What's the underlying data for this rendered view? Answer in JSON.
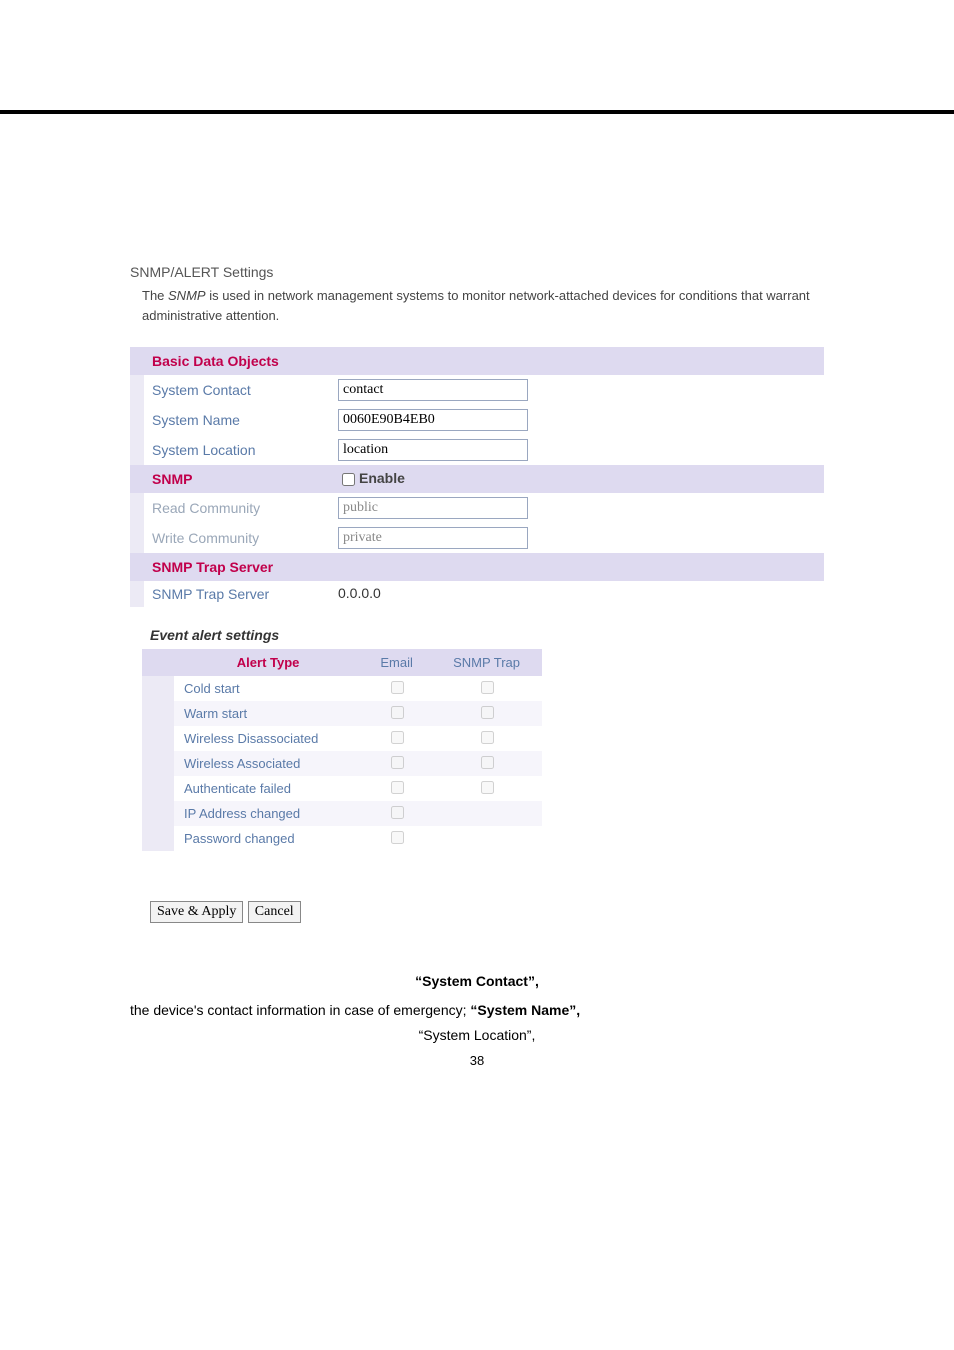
{
  "screenshot": {
    "title": "SNMP/ALERT Settings",
    "intro_pre": "The ",
    "intro_em": "SNMP",
    "intro_post": " is used in network management systems to monitor network-attached devices for conditions that warrant administrative attention.",
    "sections": {
      "basic_title": "Basic Data Objects",
      "system_contact": {
        "label": "System Contact",
        "value": "contact"
      },
      "system_name": {
        "label": "System Name",
        "value": "0060E90B4EB0"
      },
      "system_location": {
        "label": "System Location",
        "value": "location"
      },
      "snmp_title": "SNMP",
      "enable_label": "Enable",
      "read_community": {
        "label": "Read Community",
        "value": "public"
      },
      "write_community": {
        "label": "Write Community",
        "value": "private"
      },
      "trap_title": "SNMP Trap Server",
      "trap_server": {
        "label": "SNMP Trap Server",
        "value": "0.0.0.0"
      }
    },
    "events_heading": "Event alert settings",
    "events_table": {
      "header_alert_type": "Alert Type",
      "header_email": "Email",
      "header_snmp": "SNMP Trap",
      "rows": [
        {
          "label": "Cold start",
          "email": true,
          "snmp": true
        },
        {
          "label": "Warm start",
          "email": true,
          "snmp": true
        },
        {
          "label": "Wireless Disassociated",
          "email": true,
          "snmp": true
        },
        {
          "label": "Wireless Associated",
          "email": true,
          "snmp": true
        },
        {
          "label": "Authenticate failed",
          "email": true,
          "snmp": true
        },
        {
          "label": "IP Address changed",
          "email": true,
          "snmp": false
        },
        {
          "label": "Password changed",
          "email": true,
          "snmp": false
        }
      ]
    },
    "buttons": {
      "save": "Save & Apply",
      "cancel": "Cancel"
    }
  },
  "doc": {
    "figure_quote": "“System Contact”,",
    "body_pre": "the device's contact information in case of emergency; ",
    "body_q1": "“System Name”,",
    "body2_q": "“System Location”,",
    "page_number": "38"
  },
  "style": {
    "section_bg": "#dedaf0",
    "strip_bg": "#eceaf5",
    "alt_bg": "#f6f5fb",
    "title_color": "#c1004b",
    "label_color": "#5a7aa8"
  }
}
